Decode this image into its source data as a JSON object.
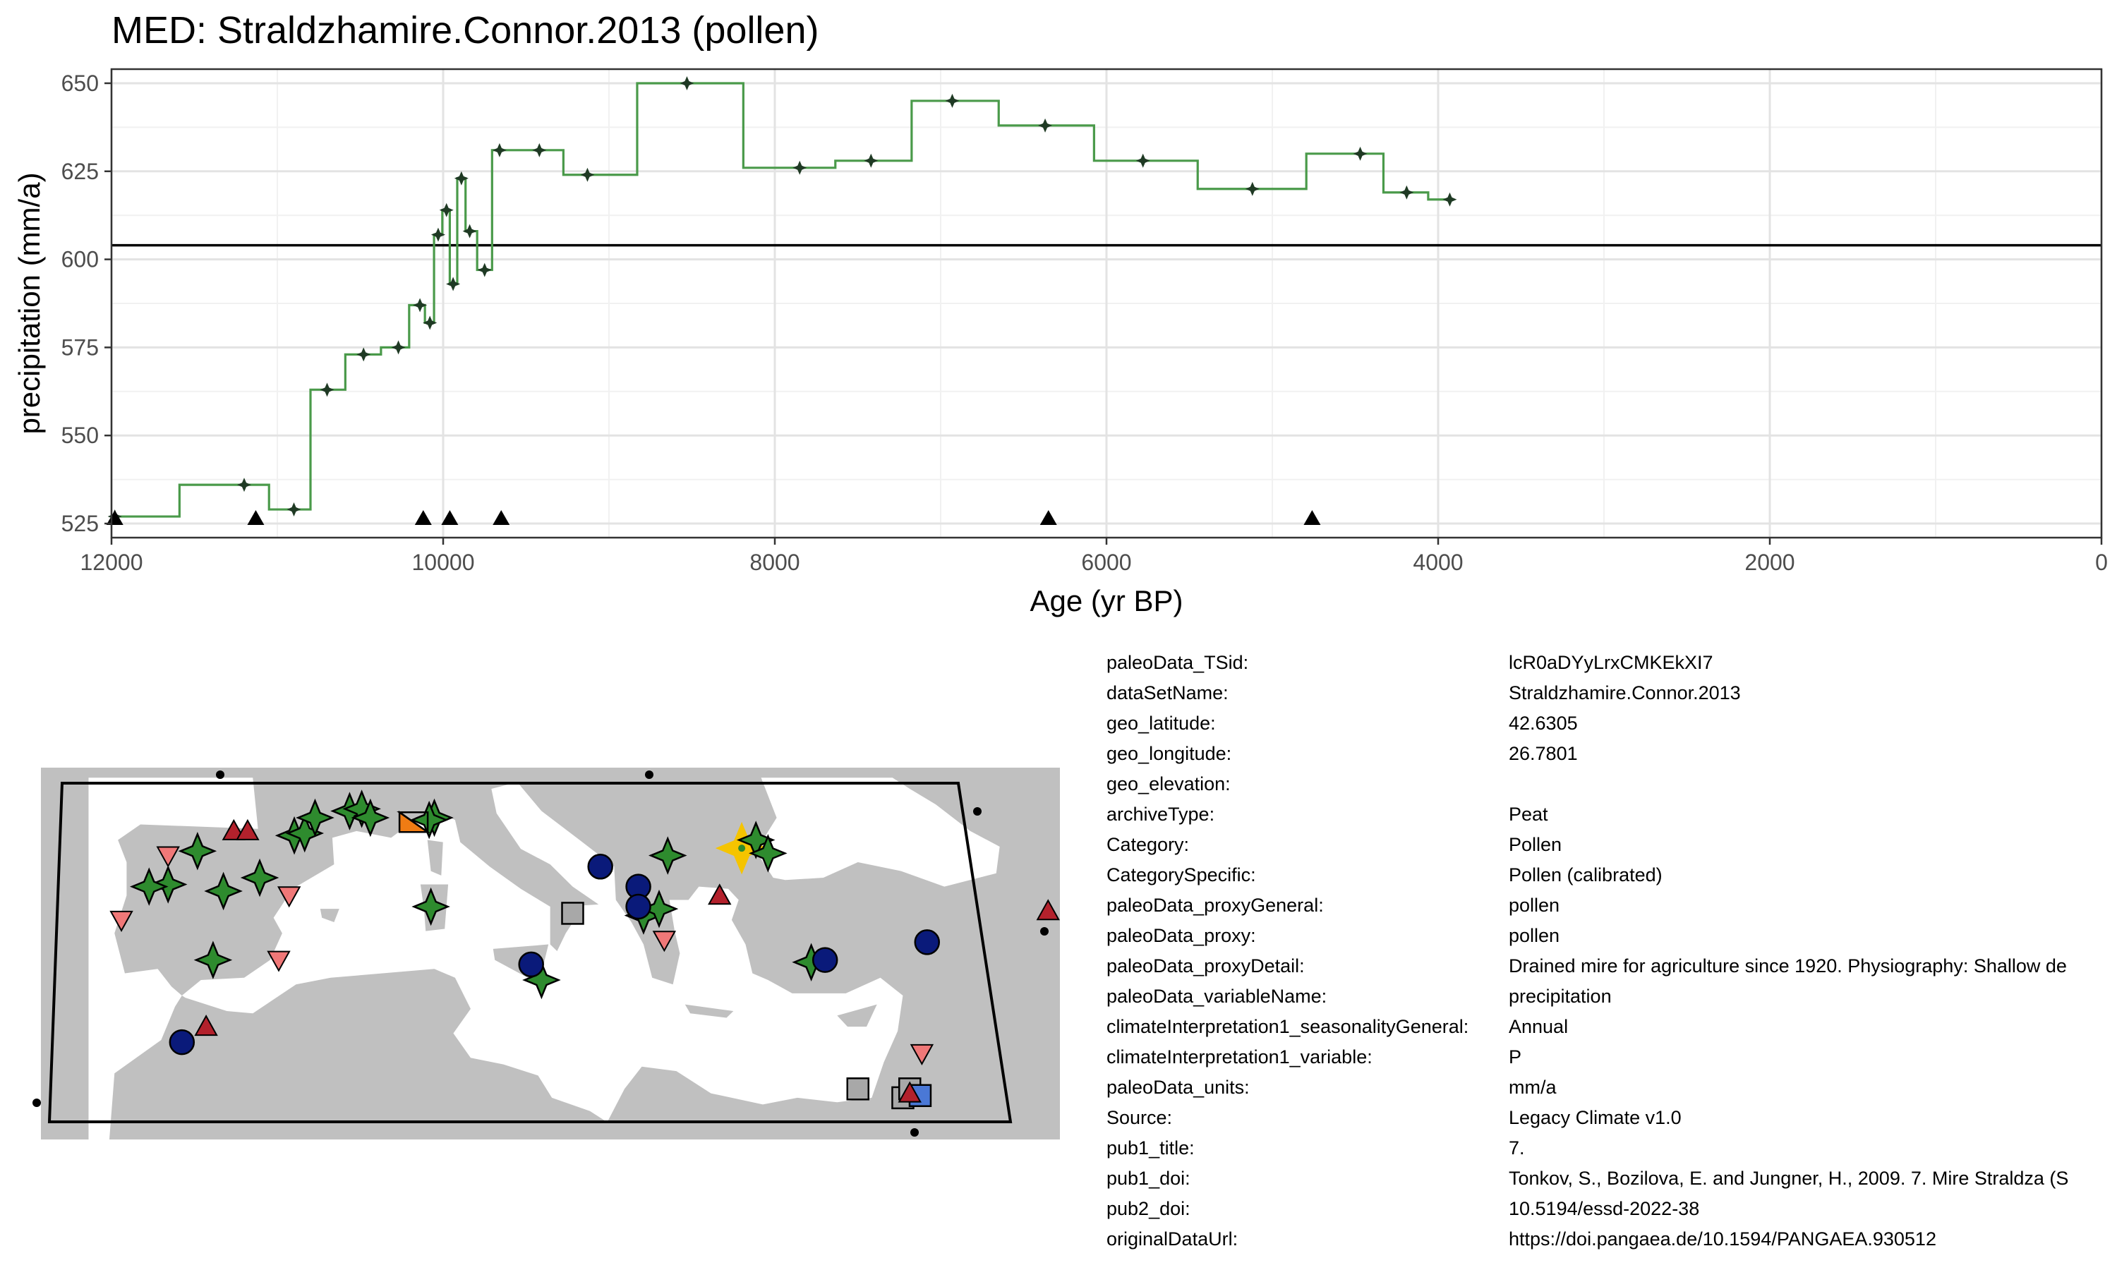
{
  "title": "MED: Straldzhamire.Connor.2013 (pollen)",
  "chart_data": {
    "type": "line",
    "step": true,
    "title": "MED: Straldzhamire.Connor.2013 (pollen)",
    "xlabel": "Age (yr BP)",
    "ylabel": "precipitation (mm/a)",
    "xlim": [
      12000,
      0
    ],
    "ylim": [
      521,
      654
    ],
    "x_reversed": true,
    "x_ticks": [
      12000,
      10000,
      8000,
      6000,
      4000,
      2000,
      0
    ],
    "x_tick_labels": [
      "12000",
      "10000",
      "8000",
      "6000",
      "4000",
      "2000",
      "0"
    ],
    "y_ticks": [
      525,
      550,
      575,
      600,
      625,
      650
    ],
    "y_tick_labels": [
      "525",
      "550",
      "575",
      "600",
      "625",
      "650"
    ],
    "grid": true,
    "reference_line": 604,
    "line_color": "#4a9a4a",
    "point_color": "#1f3a24",
    "points": [
      {
        "x": 11980,
        "y": 527
      },
      {
        "x": 11200,
        "y": 536
      },
      {
        "x": 10900,
        "y": 529
      },
      {
        "x": 10700,
        "y": 563
      },
      {
        "x": 10480,
        "y": 573
      },
      {
        "x": 10270,
        "y": 575
      },
      {
        "x": 10140,
        "y": 587
      },
      {
        "x": 10080,
        "y": 582
      },
      {
        "x": 10030,
        "y": 607
      },
      {
        "x": 9980,
        "y": 614
      },
      {
        "x": 9940,
        "y": 593
      },
      {
        "x": 9890,
        "y": 623
      },
      {
        "x": 9840,
        "y": 608
      },
      {
        "x": 9750,
        "y": 597
      },
      {
        "x": 9660,
        "y": 631
      },
      {
        "x": 9420,
        "y": 631
      },
      {
        "x": 9130,
        "y": 624
      },
      {
        "x": 8530,
        "y": 650
      },
      {
        "x": 7850,
        "y": 626
      },
      {
        "x": 7420,
        "y": 628
      },
      {
        "x": 6930,
        "y": 645
      },
      {
        "x": 6370,
        "y": 638
      },
      {
        "x": 5780,
        "y": 628
      },
      {
        "x": 5120,
        "y": 620
      },
      {
        "x": 4470,
        "y": 630
      },
      {
        "x": 4190,
        "y": 619
      },
      {
        "x": 3930,
        "y": 617
      }
    ],
    "age_markers": [
      11980,
      11130,
      10120,
      9960,
      9650,
      6350,
      4760
    ]
  },
  "map": {
    "land_color": "#c0c0c0",
    "sea_color": "#ffffff",
    "sites": [
      {
        "shape": "star4",
        "color": "#2e8b2e",
        "lon": 26.78,
        "lat": 42.63,
        "highlight": true
      },
      {
        "shape": "star4",
        "color": "#2e8b2e",
        "lon": -4.7,
        "lat": 42.5
      },
      {
        "shape": "star4",
        "color": "#2e8b2e",
        "lon": -6.4,
        "lat": 41.0
      },
      {
        "shape": "star4",
        "color": "#2e8b2e",
        "lon": -7.5,
        "lat": 40.9
      },
      {
        "shape": "star4",
        "color": "#2e8b2e",
        "lon": -3.2,
        "lat": 40.7
      },
      {
        "shape": "star4",
        "color": "#2e8b2e",
        "lon": 0.9,
        "lat": 43.2
      },
      {
        "shape": "star4",
        "color": "#2e8b2e",
        "lon": 1.5,
        "lat": 43.3
      },
      {
        "shape": "star4",
        "color": "#2e8b2e",
        "lon": 2.1,
        "lat": 44.0
      },
      {
        "shape": "star4",
        "color": "#2e8b2e",
        "lon": 4.1,
        "lat": 44.3
      },
      {
        "shape": "star4",
        "color": "#2e8b2e",
        "lon": 4.8,
        "lat": 44.4
      },
      {
        "shape": "star4",
        "color": "#2e8b2e",
        "lon": 5.3,
        "lat": 44.0
      },
      {
        "shape": "star4",
        "color": "#2e8b2e",
        "lon": 9.0,
        "lat": 44.0
      },
      {
        "shape": "star4",
        "color": "#2e8b2e",
        "lon": 8.7,
        "lat": 43.9
      },
      {
        "shape": "star4",
        "color": "#2e8b2e",
        "lon": -1.1,
        "lat": 41.3
      },
      {
        "shape": "star4",
        "color": "#2e8b2e",
        "lon": -3.8,
        "lat": 37.6
      },
      {
        "shape": "star4",
        "color": "#2e8b2e",
        "lon": 8.8,
        "lat": 40.0
      },
      {
        "shape": "star4",
        "color": "#2e8b2e",
        "lon": 15.2,
        "lat": 36.7
      },
      {
        "shape": "star4",
        "color": "#2e8b2e",
        "lon": 21.1,
        "lat": 39.6
      },
      {
        "shape": "star4",
        "color": "#2e8b2e",
        "lon": 22.0,
        "lat": 39.9
      },
      {
        "shape": "star4",
        "color": "#2e8b2e",
        "lon": 22.5,
        "lat": 42.3
      },
      {
        "shape": "star4",
        "color": "#2e8b2e",
        "lon": 27.6,
        "lat": 43.0
      },
      {
        "shape": "star4",
        "color": "#2e8b2e",
        "lon": 28.3,
        "lat": 42.4
      },
      {
        "shape": "star4",
        "color": "#2e8b2e",
        "lon": 30.8,
        "lat": 37.5
      },
      {
        "shape": "circle",
        "color": "#0a1a7a",
        "lon": 18.6,
        "lat": 41.8
      },
      {
        "shape": "circle",
        "color": "#0a1a7a",
        "lon": 20.8,
        "lat": 40.9
      },
      {
        "shape": "circle",
        "color": "#0a1a7a",
        "lon": 20.8,
        "lat": 40.0
      },
      {
        "shape": "circle",
        "color": "#0a1a7a",
        "lon": 14.6,
        "lat": 37.4
      },
      {
        "shape": "circle",
        "color": "#0a1a7a",
        "lon": 31.6,
        "lat": 37.6
      },
      {
        "shape": "circle",
        "color": "#0a1a7a",
        "lon": 37.5,
        "lat": 38.4
      },
      {
        "shape": "circle",
        "color": "#0a1a7a",
        "lon": -5.6,
        "lat": 33.9
      },
      {
        "shape": "square",
        "color": "#a8a8a8",
        "lon": 17.0,
        "lat": 39.7
      },
      {
        "shape": "square",
        "color": "#a8a8a8",
        "lon": 33.5,
        "lat": 31.8
      },
      {
        "shape": "square",
        "color": "#a8a8a8",
        "lon": 36.1,
        "lat": 31.4
      },
      {
        "shape": "square",
        "color": "#a8a8a8",
        "lon": 36.5,
        "lat": 31.8
      },
      {
        "shape": "square",
        "color": "#4a78d6",
        "lon": 37.1,
        "lat": 31.5
      },
      {
        "shape": "triangle",
        "color": "#b3212c",
        "lon": -2.6,
        "lat": 43.4
      },
      {
        "shape": "triangle",
        "color": "#b3212c",
        "lon": -1.8,
        "lat": 43.4
      },
      {
        "shape": "triangle",
        "color": "#b3212c",
        "lon": 25.5,
        "lat": 40.5
      },
      {
        "shape": "triangle",
        "color": "#b3212c",
        "lon": 44.5,
        "lat": 39.8
      },
      {
        "shape": "triangle",
        "color": "#b3212c",
        "lon": -4.2,
        "lat": 34.6
      },
      {
        "shape": "triangle",
        "color": "#b3212c",
        "lon": 36.5,
        "lat": 31.6
      },
      {
        "shape": "triangle-down",
        "color": "#f07878",
        "lon": -6.4,
        "lat": 42.3
      },
      {
        "shape": "triangle-down",
        "color": "#f07878",
        "lon": -9.1,
        "lat": 39.4
      },
      {
        "shape": "triangle-down",
        "color": "#f07878",
        "lon": 0.6,
        "lat": 40.5
      },
      {
        "shape": "triangle-down",
        "color": "#f07878",
        "lon": 0.0,
        "lat": 37.6
      },
      {
        "shape": "triangle-down",
        "color": "#f07878",
        "lon": 22.3,
        "lat": 38.5
      },
      {
        "shape": "triangle-down",
        "color": "#f07878",
        "lon": 37.2,
        "lat": 33.4
      },
      {
        "shape": "half-square",
        "color": "#f07c14",
        "lon": 7.8,
        "lat": 43.8
      }
    ]
  },
  "meta": [
    {
      "key": "paleoData_TSid:",
      "value": "lcR0aDYyLrxCMKEkXI7"
    },
    {
      "key": "dataSetName:",
      "value": "Straldzhamire.Connor.2013"
    },
    {
      "key": "geo_latitude:",
      "value": "42.6305"
    },
    {
      "key": "geo_longitude:",
      "value": "26.7801"
    },
    {
      "key": "geo_elevation:",
      "value": ""
    },
    {
      "key": "archiveType:",
      "value": "Peat"
    },
    {
      "key": "Category:",
      "value": "Pollen"
    },
    {
      "key": "CategorySpecific:",
      "value": "Pollen (calibrated)"
    },
    {
      "key": "paleoData_proxyGeneral:",
      "value": "pollen"
    },
    {
      "key": "paleoData_proxy:",
      "value": "pollen"
    },
    {
      "key": "paleoData_proxyDetail:",
      "value": "Drained mire for agriculture since 1920. Physiography: Shallow de"
    },
    {
      "key": "paleoData_variableName:",
      "value": "precipitation"
    },
    {
      "key": "climateInterpretation1_seasonalityGeneral:",
      "value": "Annual"
    },
    {
      "key": "climateInterpretation1_variable:",
      "value": "P"
    },
    {
      "key": "paleoData_units:",
      "value": "mm/a"
    },
    {
      "key": "Source:",
      "value": "Legacy Climate v1.0"
    },
    {
      "key": "pub1_title:",
      "value": "7."
    },
    {
      "key": "pub1_doi:",
      "value": "Tonkov, S., Bozilova, E. and Jungner, H., 2009. 7. Mire Straldza (S"
    },
    {
      "key": "pub2_doi:",
      "value": "10.5194/essd-2022-38"
    },
    {
      "key": "originalDataUrl:",
      "value": "https://doi.pangaea.de/10.1594/PANGAEA.930512"
    }
  ]
}
